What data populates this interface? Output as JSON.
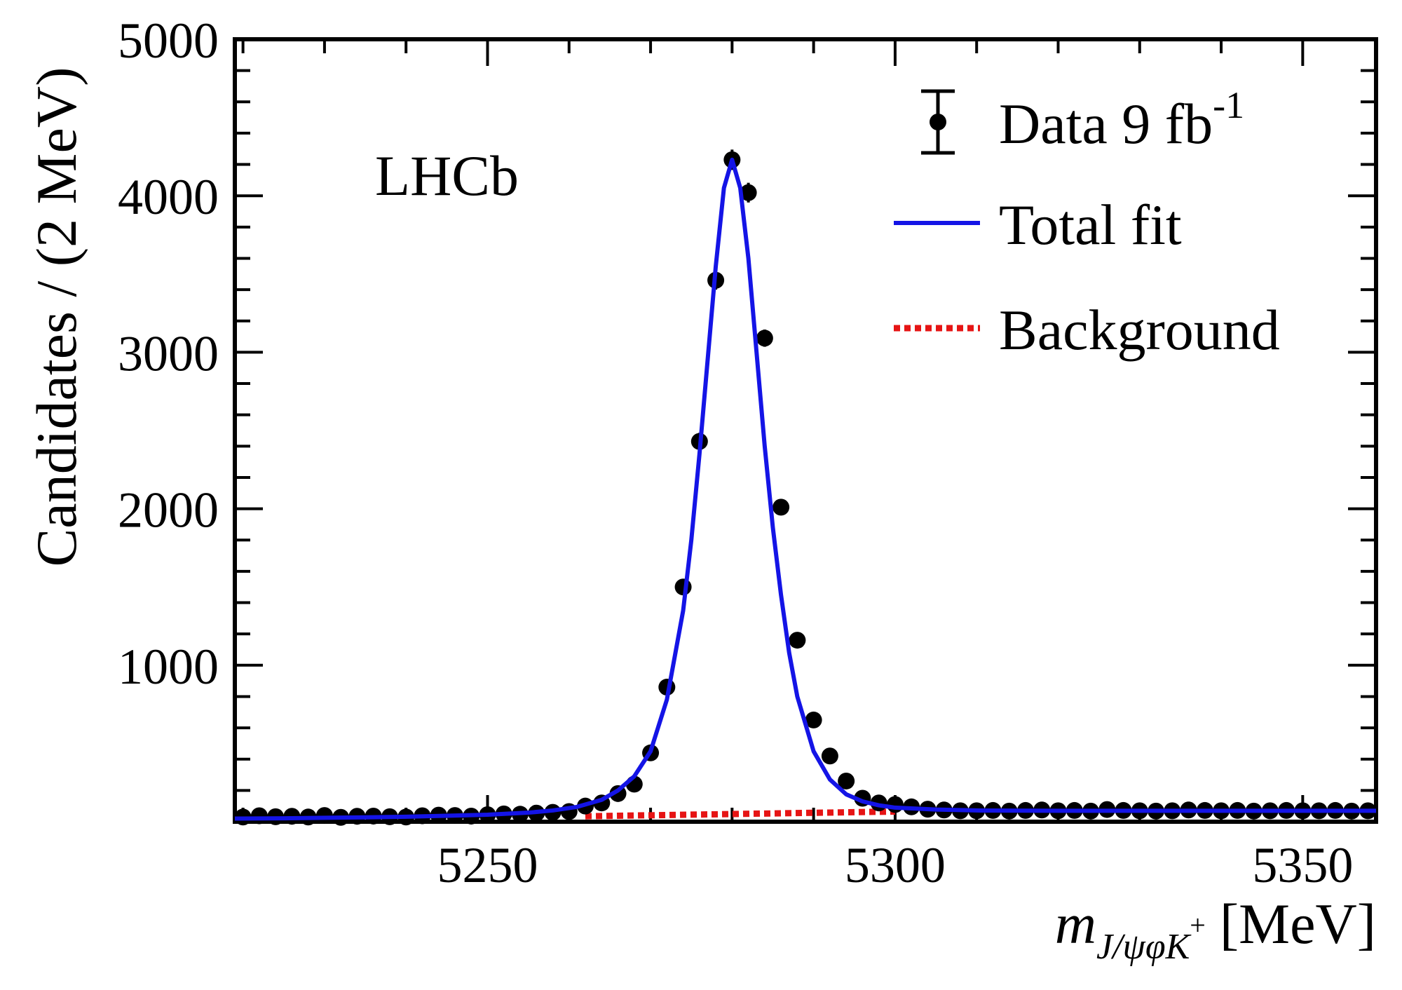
{
  "chart_data": {
    "type": "scatter",
    "experiment_label": "LHCb",
    "xlabel": {
      "main": "m",
      "subscript": "J/ψφK",
      "superscript": "+",
      "unit": "[MeV]"
    },
    "ylabel": "Candidates / (2 MeV)",
    "xlim": [
      5219,
      5359
    ],
    "ylim": [
      0,
      5000
    ],
    "x_ticks": [
      5250,
      5300,
      5350
    ],
    "x_tick_labels": [
      "5250",
      "5300",
      "5350"
    ],
    "y_ticks": [
      1000,
      2000,
      3000,
      4000,
      5000
    ],
    "y_tick_labels": [
      "1000",
      "2000",
      "3000",
      "4000",
      "5000"
    ],
    "legend": {
      "position": "top-right",
      "entries": [
        {
          "label": "Data 9 fb",
          "superscript": "-1",
          "style": "points"
        },
        {
          "label": "Total fit",
          "style": "solid-line",
          "color": "#1414e6"
        },
        {
          "label": "Background",
          "style": "dotted-line",
          "color": "#e61414"
        }
      ]
    },
    "series": [
      {
        "name": "Data 9 fb-1",
        "style": "points",
        "x": [
          5220,
          5222,
          5224,
          5226,
          5228,
          5230,
          5232,
          5234,
          5236,
          5238,
          5240,
          5242,
          5244,
          5246,
          5248,
          5250,
          5252,
          5254,
          5256,
          5258,
          5260,
          5262,
          5264,
          5266,
          5268,
          5270,
          5272,
          5274,
          5276,
          5278,
          5280,
          5282,
          5284,
          5286,
          5288,
          5290,
          5292,
          5294,
          5296,
          5298,
          5300,
          5302,
          5304,
          5306,
          5308,
          5310,
          5312,
          5314,
          5316,
          5318,
          5320,
          5322,
          5324,
          5326,
          5328,
          5330,
          5332,
          5334,
          5336,
          5338,
          5340,
          5342,
          5344,
          5346,
          5348,
          5350,
          5352,
          5354,
          5356,
          5358
        ],
        "y": [
          30,
          38,
          32,
          35,
          30,
          40,
          28,
          35,
          36,
          32,
          30,
          38,
          42,
          40,
          36,
          45,
          50,
          48,
          55,
          60,
          65,
          100,
          120,
          180,
          240,
          440,
          860,
          1500,
          2430,
          3460,
          4230,
          4020,
          3090,
          2010,
          1160,
          650,
          420,
          260,
          150,
          120,
          110,
          95,
          80,
          75,
          70,
          70,
          72,
          68,
          72,
          75,
          70,
          72,
          68,
          78,
          72,
          70,
          68,
          70,
          75,
          72,
          70,
          72,
          68,
          70,
          72,
          70,
          70,
          72,
          68,
          70
        ],
        "yerr": [
          8,
          8,
          8,
          8,
          8,
          8,
          8,
          8,
          8,
          8,
          8,
          8,
          8,
          8,
          8,
          9,
          9,
          9,
          9,
          10,
          10,
          12,
          13,
          16,
          18,
          25,
          35,
          45,
          55,
          60,
          65,
          63,
          55,
          45,
          34,
          27,
          22,
          18,
          15,
          13,
          12,
          11,
          10,
          10,
          10,
          10,
          10,
          10,
          10,
          10,
          10,
          10,
          10,
          10,
          10,
          10,
          10,
          10,
          10,
          10,
          10,
          10,
          10,
          10,
          10,
          10,
          10,
          10,
          10,
          10
        ],
        "color": "#000000"
      },
      {
        "name": "Total fit",
        "style": "solid-line",
        "color": "#1414e6",
        "x": [
          5219,
          5225,
          5230,
          5235,
          5240,
          5245,
          5250,
          5255,
          5258,
          5261,
          5264,
          5266,
          5268,
          5270,
          5272,
          5274,
          5275,
          5276,
          5277,
          5278,
          5279,
          5280,
          5281,
          5282,
          5283,
          5284,
          5285,
          5286,
          5287,
          5288,
          5290,
          5292,
          5294,
          5296,
          5298,
          5300,
          5305,
          5310,
          5320,
          5330,
          5340,
          5350,
          5359
        ],
        "y": [
          20,
          22,
          25,
          28,
          32,
          38,
          45,
          58,
          72,
          95,
          140,
          200,
          290,
          450,
          780,
          1350,
          1800,
          2350,
          2950,
          3550,
          4050,
          4230,
          4050,
          3600,
          3000,
          2400,
          1880,
          1450,
          1080,
          800,
          450,
          270,
          175,
          130,
          105,
          90,
          78,
          72,
          70,
          70,
          70,
          70,
          70
        ]
      },
      {
        "name": "Background",
        "style": "dotted-line",
        "color": "#e61414",
        "x": [
          5262,
          5300
        ],
        "y": [
          35,
          65
        ]
      }
    ]
  }
}
